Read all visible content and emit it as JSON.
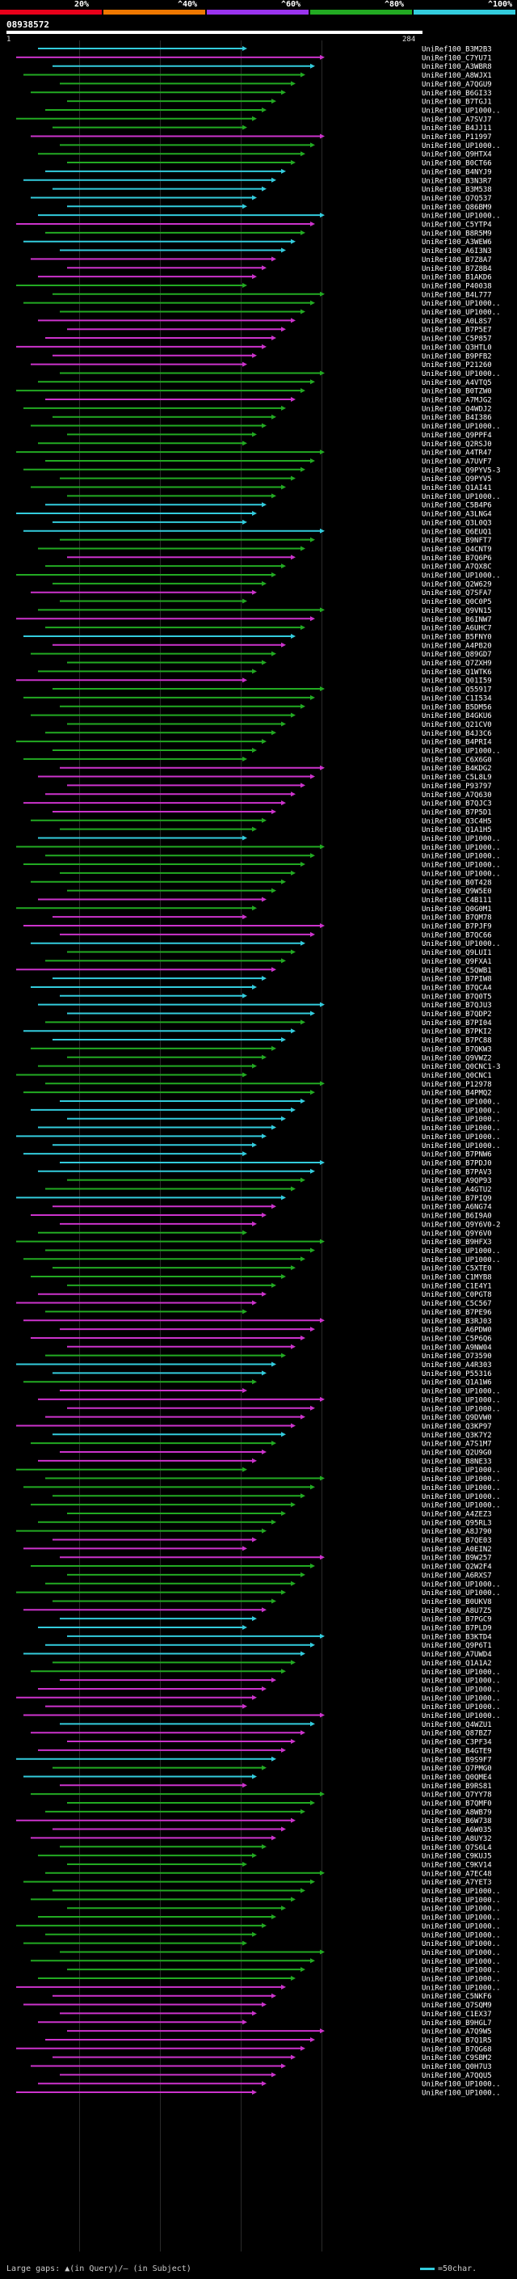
{
  "legend": {
    "colors": [
      "#e8001a",
      "#ee7700",
      "#9933ee",
      "#22aa22",
      "#33ccdd"
    ],
    "labels": [
      "20%",
      "^40%",
      "^60%",
      "^80%",
      "^100%"
    ]
  },
  "query": {
    "id": "08938572",
    "start_label": "1",
    "end_label": "284",
    "length": 284
  },
  "footer": {
    "gaps_text": "Large gaps: ▲(in Query)/– (in Subject)",
    "scale_text": "=50char."
  },
  "hits": [
    {
      "id": "UniRef100_B3M2B3",
      "c": "cyan"
    },
    {
      "id": "UniRef100_C7YU71",
      "c": "magenta"
    },
    {
      "id": "UniRef100_A3WBR8",
      "c": "cyan"
    },
    {
      "id": "UniRef100_A8WJX1",
      "c": "green"
    },
    {
      "id": "UniRef100_A7QGU9",
      "c": "green"
    },
    {
      "id": "UniRef100_B6GI33",
      "c": "green"
    },
    {
      "id": "UniRef100_B7TGJ1",
      "c": "green"
    },
    {
      "id": "UniRef100_UP1000..",
      "c": "green"
    },
    {
      "id": "UniRef100_A7SVJ7",
      "c": "green"
    },
    {
      "id": "UniRef100_B4JJ11",
      "c": "green"
    },
    {
      "id": "UniRef100_P11997",
      "c": "magenta"
    },
    {
      "id": "UniRef100_UP1000..",
      "c": "green"
    },
    {
      "id": "UniRef100_Q9HTX4",
      "c": "green"
    },
    {
      "id": "UniRef100_B0CT66",
      "c": "green"
    },
    {
      "id": "UniRef100_B4NYJ9",
      "c": "cyan"
    },
    {
      "id": "UniRef100_B3N3R7",
      "c": "cyan"
    },
    {
      "id": "UniRef100_B3M538",
      "c": "cyan"
    },
    {
      "id": "UniRef100_Q7Q537",
      "c": "cyan"
    },
    {
      "id": "UniRef100_Q86BM9",
      "c": "cyan"
    },
    {
      "id": "UniRef100_UP1000..",
      "c": "cyan"
    },
    {
      "id": "UniRef100_C5YTP4",
      "c": "magenta"
    },
    {
      "id": "UniRef100_B8R5M9",
      "c": "green"
    },
    {
      "id": "UniRef100_A3WEW6",
      "c": "cyan"
    },
    {
      "id": "UniRef100_A6I3N3",
      "c": "cyan"
    },
    {
      "id": "UniRef100_B7Z8A7",
      "c": "magenta"
    },
    {
      "id": "UniRef100_B7Z8B4",
      "c": "magenta"
    },
    {
      "id": "UniRef100_B1AKD6",
      "c": "magenta"
    },
    {
      "id": "UniRef100_P40038",
      "c": "green"
    },
    {
      "id": "UniRef100_B4L777",
      "c": "green"
    },
    {
      "id": "UniRef100_UP1000..",
      "c": "green"
    },
    {
      "id": "UniRef100_UP1000..",
      "c": "green"
    },
    {
      "id": "UniRef100_A0L8S7",
      "c": "magenta"
    },
    {
      "id": "UniRef100_B7P5E7",
      "c": "magenta"
    },
    {
      "id": "UniRef100_C5P857",
      "c": "magenta"
    },
    {
      "id": "UniRef100_Q3HTL0",
      "c": "magenta"
    },
    {
      "id": "UniRef100_B9PFB2",
      "c": "magenta"
    },
    {
      "id": "UniRef100_P21260",
      "c": "magenta"
    },
    {
      "id": "UniRef100_UP1000..",
      "c": "green"
    },
    {
      "id": "UniRef100_A4VTQ5",
      "c": "green"
    },
    {
      "id": "UniRef100_B0TZW0",
      "c": "green"
    },
    {
      "id": "UniRef100_A7MJG2",
      "c": "magenta"
    },
    {
      "id": "UniRef100_Q4WDJ2",
      "c": "green"
    },
    {
      "id": "UniRef100_B4I386",
      "c": "green"
    },
    {
      "id": "UniRef100_UP1000..",
      "c": "green"
    },
    {
      "id": "UniRef100_Q9PPF4",
      "c": "green"
    },
    {
      "id": "UniRef100_Q2RSJ0",
      "c": "green"
    },
    {
      "id": "UniRef100_A4TR47",
      "c": "green"
    },
    {
      "id": "UniRef100_A7UVF7",
      "c": "green"
    },
    {
      "id": "UniRef100_Q9PYV5-3",
      "c": "green"
    },
    {
      "id": "UniRef100_Q9PYV5",
      "c": "green"
    },
    {
      "id": "UniRef100_Q1AI41",
      "c": "green"
    },
    {
      "id": "UniRef100_UP1000..",
      "c": "green"
    },
    {
      "id": "UniRef100_C5B4P6",
      "c": "cyan"
    },
    {
      "id": "UniRef100_A3LNG4",
      "c": "cyan"
    },
    {
      "id": "UniRef100_Q3L0Q3",
      "c": "cyan"
    },
    {
      "id": "UniRef100_Q6EUQ1",
      "c": "cyan"
    },
    {
      "id": "UniRef100_B9NFT7",
      "c": "green"
    },
    {
      "id": "UniRef100_Q4CNT9",
      "c": "green"
    },
    {
      "id": "UniRef100_B7Q6P6",
      "c": "magenta"
    },
    {
      "id": "UniRef100_A7QX8C",
      "c": "green"
    },
    {
      "id": "UniRef100_UP1000..",
      "c": "green"
    },
    {
      "id": "UniRef100_Q2W629",
      "c": "green"
    },
    {
      "id": "UniRef100_Q7SFA7",
      "c": "magenta"
    },
    {
      "id": "UniRef100_Q0C0P5",
      "c": "green"
    },
    {
      "id": "UniRef100_Q9VN15",
      "c": "green"
    },
    {
      "id": "UniRef100_B6INW7",
      "c": "magenta"
    },
    {
      "id": "UniRef100_A6UHC7",
      "c": "green"
    },
    {
      "id": "UniRef100_B5FNY0",
      "c": "cyan"
    },
    {
      "id": "UniRef100_A4PB20",
      "c": "magenta"
    },
    {
      "id": "UniRef100_Q89GD7",
      "c": "green"
    },
    {
      "id": "UniRef100_Q7ZXH9",
      "c": "green"
    },
    {
      "id": "UniRef100_Q1WTK6",
      "c": "green"
    },
    {
      "id": "UniRef100_Q01I59",
      "c": "magenta"
    },
    {
      "id": "UniRef100_Q55917",
      "c": "green"
    },
    {
      "id": "UniRef100_C1I534",
      "c": "green"
    },
    {
      "id": "UniRef100_B5DM56",
      "c": "green"
    },
    {
      "id": "UniRef100_B4GKU6",
      "c": "green"
    },
    {
      "id": "UniRef100_Q21CV0",
      "c": "green"
    },
    {
      "id": "UniRef100_B4J3C6",
      "c": "green"
    },
    {
      "id": "UniRef100_B4PRI4",
      "c": "green"
    },
    {
      "id": "UniRef100_UP1000..",
      "c": "green"
    },
    {
      "id": "UniRef100_C6X6G0",
      "c": "green"
    },
    {
      "id": "UniRef100_B4KDG2",
      "c": "magenta"
    },
    {
      "id": "UniRef100_C5L8L9",
      "c": "magenta"
    },
    {
      "id": "UniRef100_P93797",
      "c": "magenta"
    },
    {
      "id": "UniRef100_A7Q630",
      "c": "magenta"
    },
    {
      "id": "UniRef100_B7QJC3",
      "c": "magenta"
    },
    {
      "id": "UniRef100_B7P5D1",
      "c": "magenta"
    },
    {
      "id": "UniRef100_Q3C4H5",
      "c": "green"
    },
    {
      "id": "UniRef100_Q1A1H5",
      "c": "green"
    },
    {
      "id": "UniRef100_UP1000..",
      "c": "cyan"
    },
    {
      "id": "UniRef100_UP1000..",
      "c": "green"
    },
    {
      "id": "UniRef100_UP1000..",
      "c": "green"
    },
    {
      "id": "UniRef100_UP1000..",
      "c": "green"
    },
    {
      "id": "UniRef100_UP1000..",
      "c": "green"
    },
    {
      "id": "UniRef100_B0T428",
      "c": "green"
    },
    {
      "id": "UniRef100_Q9W5E0",
      "c": "green"
    },
    {
      "id": "UniRef100_C4B111",
      "c": "magenta"
    },
    {
      "id": "UniRef100_Q0G0M1",
      "c": "green"
    },
    {
      "id": "UniRef100_B7QM78",
      "c": "magenta"
    },
    {
      "id": "UniRef100_B7PJF9",
      "c": "magenta"
    },
    {
      "id": "UniRef100_B7QC66",
      "c": "magenta"
    },
    {
      "id": "UniRef100_UP1000..",
      "c": "cyan"
    },
    {
      "id": "UniRef100_Q9LUI1",
      "c": "green"
    },
    {
      "id": "UniRef100_Q9FXA1",
      "c": "green"
    },
    {
      "id": "UniRef100_C5QWB1",
      "c": "magenta"
    },
    {
      "id": "UniRef100_B7PIW8",
      "c": "cyan"
    },
    {
      "id": "UniRef100_B7QCA4",
      "c": "cyan"
    },
    {
      "id": "UniRef100_B7Q0T5",
      "c": "cyan"
    },
    {
      "id": "UniRef100_B7QJU3",
      "c": "cyan"
    },
    {
      "id": "UniRef100_B7QDP2",
      "c": "cyan"
    },
    {
      "id": "UniRef100_B7PI04",
      "c": "green"
    },
    {
      "id": "UniRef100_B7PKI2",
      "c": "cyan"
    },
    {
      "id": "UniRef100_B7PC88",
      "c": "cyan"
    },
    {
      "id": "UniRef100_B7QKW3",
      "c": "green"
    },
    {
      "id": "UniRef100_Q9VWZ2",
      "c": "green"
    },
    {
      "id": "UniRef100_Q0CNC1-3",
      "c": "green"
    },
    {
      "id": "UniRef100_Q0CNC1",
      "c": "green"
    },
    {
      "id": "UniRef100_P12978",
      "c": "green"
    },
    {
      "id": "UniRef100_B4PMQ2",
      "c": "green"
    },
    {
      "id": "UniRef100_UP1000..",
      "c": "cyan"
    },
    {
      "id": "UniRef100_UP1000..",
      "c": "cyan"
    },
    {
      "id": "UniRef100_UP1000..",
      "c": "cyan"
    },
    {
      "id": "UniRef100_UP1000..",
      "c": "cyan"
    },
    {
      "id": "UniRef100_UP1000..",
      "c": "cyan"
    },
    {
      "id": "UniRef100_UP1000..",
      "c": "cyan"
    },
    {
      "id": "UniRef100_B7PNW6",
      "c": "cyan"
    },
    {
      "id": "UniRef100_B7PDJ0",
      "c": "cyan"
    },
    {
      "id": "UniRef100_B7PAV3",
      "c": "cyan"
    },
    {
      "id": "UniRef100_A9QP93",
      "c": "green"
    },
    {
      "id": "UniRef100_A4GTU2",
      "c": "green"
    },
    {
      "id": "UniRef100_B7PIQ9",
      "c": "cyan"
    },
    {
      "id": "UniRef100_A6NG74",
      "c": "magenta"
    },
    {
      "id": "UniRef100_B6I9A0",
      "c": "magenta"
    },
    {
      "id": "UniRef100_Q9Y6V0-2",
      "c": "magenta"
    },
    {
      "id": "UniRef100_Q9Y6V0",
      "c": "green"
    },
    {
      "id": "UniRef100_B9HFX3",
      "c": "green"
    },
    {
      "id": "UniRef100_UP1000..",
      "c": "green"
    },
    {
      "id": "UniRef100_UP1000..",
      "c": "green"
    },
    {
      "id": "UniRef100_C5XTE0",
      "c": "green"
    },
    {
      "id": "UniRef100_C1MYB8",
      "c": "green"
    },
    {
      "id": "UniRef100_C1E4Y1",
      "c": "green"
    },
    {
      "id": "UniRef100_C0PGT8",
      "c": "magenta"
    },
    {
      "id": "UniRef100_C5C567",
      "c": "magenta"
    },
    {
      "id": "UniRef100_B7PE96",
      "c": "green"
    },
    {
      "id": "UniRef100_B3RJ03",
      "c": "magenta"
    },
    {
      "id": "UniRef100_A6PDW0",
      "c": "magenta"
    },
    {
      "id": "UniRef100_C5P6Q6",
      "c": "magenta"
    },
    {
      "id": "UniRef100_A9NW04",
      "c": "magenta"
    },
    {
      "id": "UniRef100_O73590",
      "c": "green"
    },
    {
      "id": "UniRef100_A4R303",
      "c": "cyan"
    },
    {
      "id": "UniRef100_P55316",
      "c": "cyan"
    },
    {
      "id": "UniRef100_Q1A1W6",
      "c": "green"
    },
    {
      "id": "UniRef100_UP1000..",
      "c": "magenta"
    },
    {
      "id": "UniRef100_UP1000..",
      "c": "magenta"
    },
    {
      "id": "UniRef100_UP1000..",
      "c": "magenta"
    },
    {
      "id": "UniRef100_Q9DVW0",
      "c": "magenta"
    },
    {
      "id": "UniRef100_Q3KP97",
      "c": "magenta"
    },
    {
      "id": "UniRef100_Q3K7Y2",
      "c": "cyan"
    },
    {
      "id": "UniRef100_A7S1M7",
      "c": "green"
    },
    {
      "id": "UniRef100_Q2U9G0",
      "c": "magenta"
    },
    {
      "id": "UniRef100_B8NE33",
      "c": "magenta"
    },
    {
      "id": "UniRef100_UP1000..",
      "c": "green"
    },
    {
      "id": "UniRef100_UP1000..",
      "c": "green"
    },
    {
      "id": "UniRef100_UP1000..",
      "c": "green"
    },
    {
      "id": "UniRef100_UP1000..",
      "c": "green"
    },
    {
      "id": "UniRef100_UP1000..",
      "c": "green"
    },
    {
      "id": "UniRef100_A4ZEZ3",
      "c": "green"
    },
    {
      "id": "UniRef100_Q95RL3",
      "c": "green"
    },
    {
      "id": "UniRef100_A8J790",
      "c": "green"
    },
    {
      "id": "UniRef100_B7QE03",
      "c": "magenta"
    },
    {
      "id": "UniRef100_A0EIN2",
      "c": "magenta"
    },
    {
      "id": "UniRef100_B9W257",
      "c": "magenta"
    },
    {
      "id": "UniRef100_Q2W2F4",
      "c": "green"
    },
    {
      "id": "UniRef100_A6RXS7",
      "c": "green"
    },
    {
      "id": "UniRef100_UP1000..",
      "c": "green"
    },
    {
      "id": "UniRef100_UP1000..",
      "c": "green"
    },
    {
      "id": "UniRef100_B0UKV8",
      "c": "green"
    },
    {
      "id": "UniRef100_A8U7Z5",
      "c": "magenta"
    },
    {
      "id": "UniRef100_B7PGC9",
      "c": "cyan"
    },
    {
      "id": "UniRef100_B7PLD9",
      "c": "cyan"
    },
    {
      "id": "UniRef100_B3KTD4",
      "c": "cyan"
    },
    {
      "id": "UniRef100_Q9P6T1",
      "c": "cyan"
    },
    {
      "id": "UniRef100_A7UWD4",
      "c": "cyan"
    },
    {
      "id": "UniRef100_Q1A1A2",
      "c": "green"
    },
    {
      "id": "UniRef100_UP1000..",
      "c": "green"
    },
    {
      "id": "UniRef100_UP1000..",
      "c": "magenta"
    },
    {
      "id": "UniRef100_UP1000..",
      "c": "magenta"
    },
    {
      "id": "UniRef100_UP1000..",
      "c": "magenta"
    },
    {
      "id": "UniRef100_UP1000..",
      "c": "magenta"
    },
    {
      "id": "UniRef100_UP1000..",
      "c": "magenta"
    },
    {
      "id": "UniRef100_Q4WZU1",
      "c": "cyan"
    },
    {
      "id": "UniRef100_Q87BZ7",
      "c": "magenta"
    },
    {
      "id": "UniRef100_C3PF34",
      "c": "magenta"
    },
    {
      "id": "UniRef100_B4GTE9",
      "c": "magenta"
    },
    {
      "id": "UniRef100_B9S9F7",
      "c": "cyan"
    },
    {
      "id": "UniRef100_Q7PMG0",
      "c": "green"
    },
    {
      "id": "UniRef100_Q0QME4",
      "c": "cyan"
    },
    {
      "id": "UniRef100_B9RS81",
      "c": "magenta"
    },
    {
      "id": "UniRef100_Q7YY78",
      "c": "green"
    },
    {
      "id": "UniRef100_B7QMF0",
      "c": "green"
    },
    {
      "id": "UniRef100_A8WB79",
      "c": "green"
    },
    {
      "id": "UniRef100_B6W738",
      "c": "magenta"
    },
    {
      "id": "UniRef100_A6W035",
      "c": "magenta"
    },
    {
      "id": "UniRef100_A8UY32",
      "c": "magenta"
    },
    {
      "id": "UniRef100_Q7S6L4",
      "c": "green"
    },
    {
      "id": "UniRef100_C9KUJ5",
      "c": "green"
    },
    {
      "id": "UniRef100_C9KV14",
      "c": "green"
    },
    {
      "id": "UniRef100_A7EC48",
      "c": "green"
    },
    {
      "id": "UniRef100_A7YET3",
      "c": "green"
    },
    {
      "id": "UniRef100_UP1000..",
      "c": "green"
    },
    {
      "id": "UniRef100_UP1000..",
      "c": "green"
    },
    {
      "id": "UniRef100_UP1000..",
      "c": "green"
    },
    {
      "id": "UniRef100_UP1000..",
      "c": "green"
    },
    {
      "id": "UniRef100_UP1000..",
      "c": "green"
    },
    {
      "id": "UniRef100_UP1000..",
      "c": "green"
    },
    {
      "id": "UniRef100_UP1000..",
      "c": "green"
    },
    {
      "id": "UniRef100_UP1000..",
      "c": "green"
    },
    {
      "id": "UniRef100_UP1000..",
      "c": "green"
    },
    {
      "id": "UniRef100_UP1000..",
      "c": "green"
    },
    {
      "id": "UniRef100_UP1000..",
      "c": "green"
    },
    {
      "id": "UniRef100_UP1000..",
      "c": "magenta"
    },
    {
      "id": "UniRef100_C5NKF6",
      "c": "magenta"
    },
    {
      "id": "UniRef100_Q7SQM9",
      "c": "magenta"
    },
    {
      "id": "UniRef100_C1EX37",
      "c": "magenta"
    },
    {
      "id": "UniRef100_B9HGL7",
      "c": "magenta"
    },
    {
      "id": "UniRef100_A7Q9W5",
      "c": "magenta"
    },
    {
      "id": "UniRef100_B7Q1R5",
      "c": "magenta"
    },
    {
      "id": "UniRef100_B7QG68",
      "c": "magenta"
    },
    {
      "id": "UniRef100_C9SBM2",
      "c": "magenta"
    },
    {
      "id": "UniRef100_Q0H7U3",
      "c": "magenta"
    },
    {
      "id": "UniRef100_A7QQU5",
      "c": "magenta"
    },
    {
      "id": "UniRef100_UP1000..",
      "c": "magenta"
    },
    {
      "id": "UniRef100_UP1000..",
      "c": "magenta"
    }
  ]
}
